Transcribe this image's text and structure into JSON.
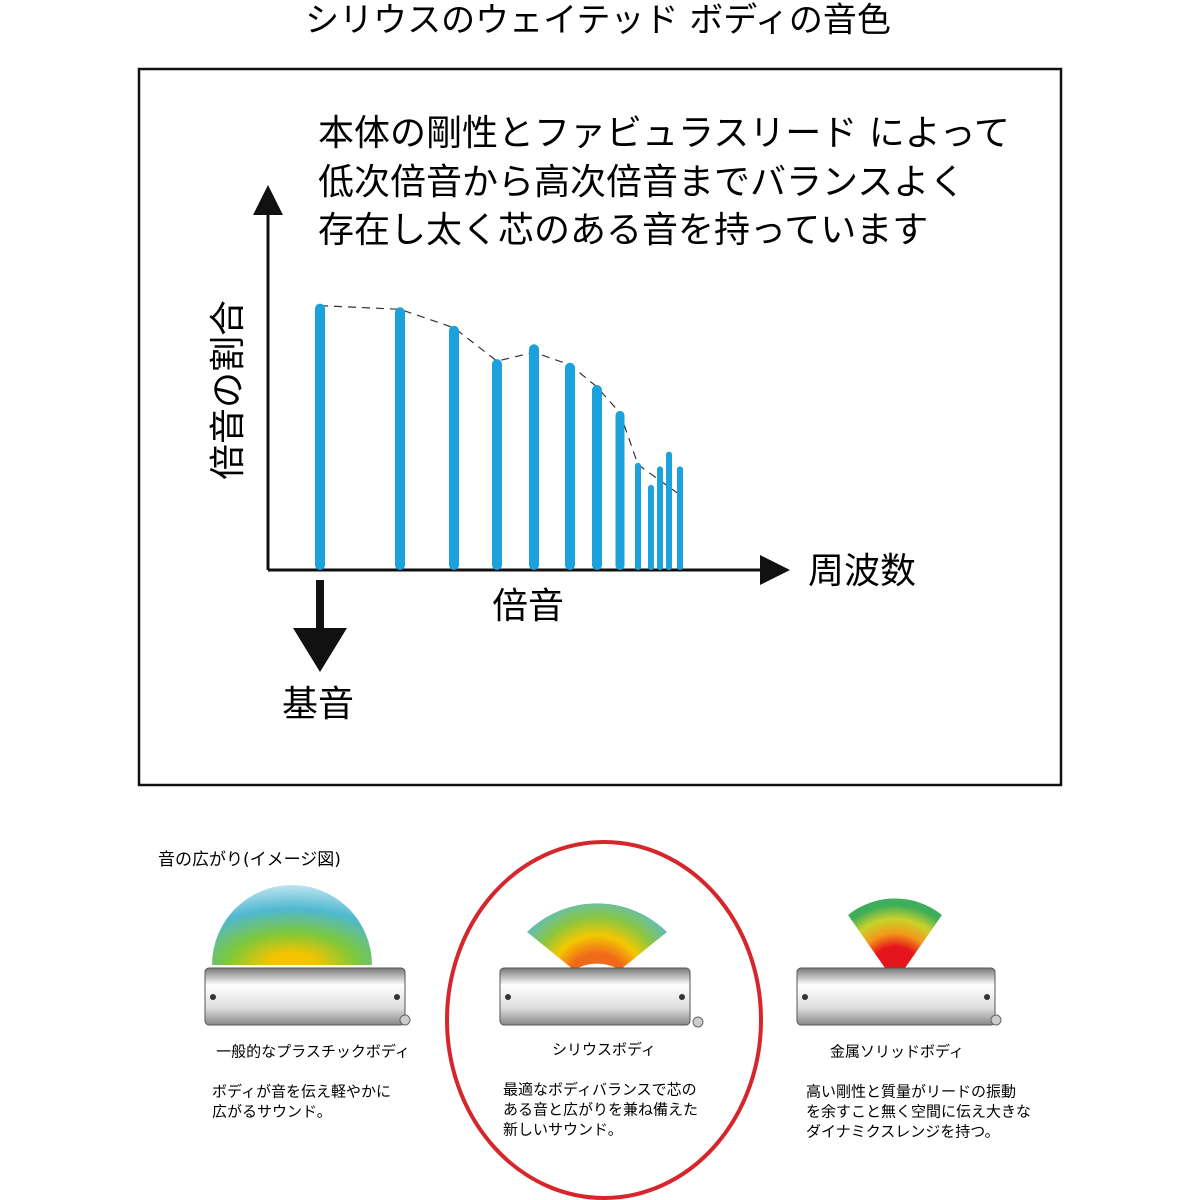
{
  "title": "シリウスのウェイテッド ボディの音色",
  "chart_data": {
    "type": "bar",
    "annotation": [
      "本体の剛性とファビュラスリード によって",
      "低次倍音から高次倍音までバランスよく",
      "存在し太く芯のある音を持っています"
    ],
    "y_label": "倍音の割合",
    "x_label": "周波数",
    "harmonics_label": "倍音",
    "fundamental_label": "基音",
    "categories": [
      null,
      null,
      null,
      null,
      null,
      null,
      null,
      null,
      null,
      null,
      null,
      null,
      null
    ],
    "values": [
      72,
      71,
      66,
      57,
      61,
      56,
      50,
      43,
      29,
      23,
      28,
      32,
      28
    ],
    "color": "#1ba1dc",
    "ylim": [
      0,
      100
    ]
  },
  "comparison": {
    "heading": "音の広がり(イメージ図)",
    "items": [
      {
        "title": "一般的なプラスチックボディ",
        "description": [
          "ボディが音を伝え軽やかに",
          "広がるサウンド。"
        ]
      },
      {
        "title": "シリウスボディ",
        "description": [
          "最適なボディバランスで芯の",
          "ある音と広がりを兼ね備えた",
          "新しいサウンド。"
        ]
      },
      {
        "title": "金属ソリッドボディ",
        "description": [
          "高い剛性と質量がリードの振動",
          "を余すこと無く空間に伝え大きな",
          "ダイナミクスレンジを持つ。"
        ]
      }
    ]
  }
}
